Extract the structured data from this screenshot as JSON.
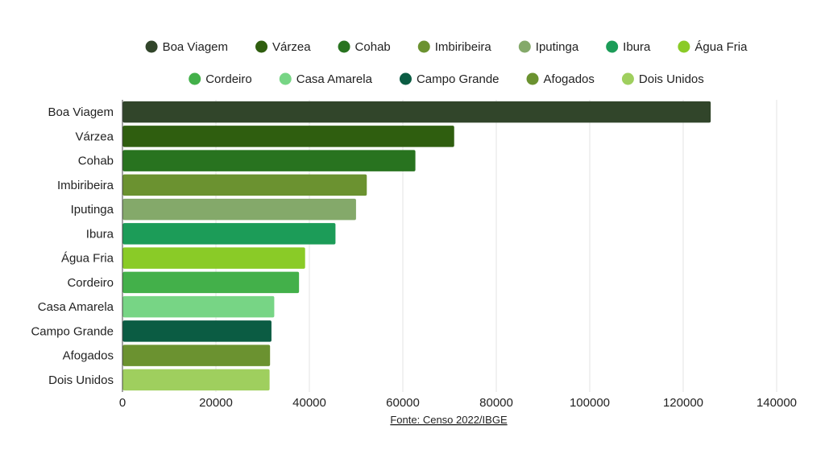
{
  "chart_data": {
    "type": "bar",
    "orientation": "horizontal",
    "categories": [
      "Boa Viagem",
      "Várzea",
      "Cohab",
      "Imbiribeira",
      "Iputinga",
      "Ibura",
      "Água Fria",
      "Cordeiro",
      "Casa Amarela",
      "Campo Grande",
      "Afogados",
      "Dois Unidos"
    ],
    "values": [
      125800,
      70900,
      62600,
      52200,
      49900,
      45500,
      39000,
      37700,
      32400,
      31800,
      31500,
      31400
    ],
    "colors": [
      "#31452a",
      "#2f5e0f",
      "#28731f",
      "#6b9230",
      "#84a96a",
      "#1c9c58",
      "#8acb27",
      "#43b04a",
      "#77d585",
      "#0b5c43",
      "#6b9230",
      "#9fcf5e"
    ],
    "legend": [
      [
        "Boa Viagem",
        "Várzea",
        "Cohab",
        "Imbiribeira",
        "Iputinga",
        "Ibura",
        "Água Fria"
      ],
      [
        "Cordeiro",
        "Casa Amarela",
        "Campo Grande",
        "Afogados",
        "Dois Unidos"
      ]
    ],
    "legend_position": "top",
    "xlim": [
      0,
      140000
    ],
    "xticks": [
      0,
      20000,
      40000,
      60000,
      80000,
      100000,
      120000,
      140000
    ],
    "xtick_labels": [
      "0",
      "20000",
      "40000",
      "60000",
      "80000",
      "100000",
      "120000",
      "140000"
    ],
    "grid": true,
    "title": "",
    "xlabel": "",
    "ylabel": "",
    "source": "Fonte: Censo 2022/IBGE"
  }
}
